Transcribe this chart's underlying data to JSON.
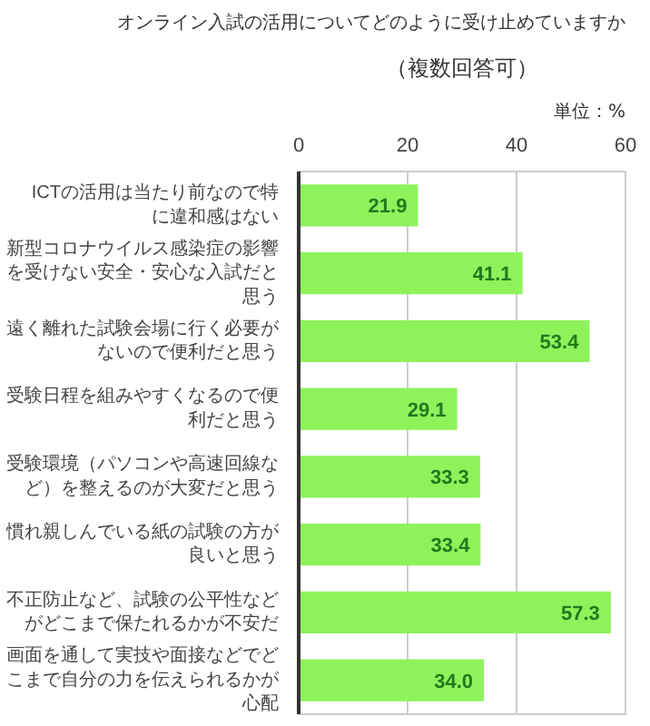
{
  "chart_data": {
    "type": "bar",
    "orientation": "horizontal",
    "title": "オンライン入試の活用についてどのように受け止めていますか",
    "subtitle": "（複数回答可）",
    "annotations": [
      "単位：%"
    ],
    "categories": [
      "ICTの活用は当たり前なので特に違和感はない",
      "新型コロナウイルス感染症の影響を受けない安全・安心な入試だと思う",
      "遠く離れた試験会場に行く必要がないので便利だと思う",
      "受験日程を組みやすくなるので便利だと思う",
      "受験環境（パソコンや高速回線など）を整えるのが大変だと思う",
      "慣れ親しんでいる紙の試験の方が良いと思う",
      "不正防止など、試験の公平性などがどこまで保たれるかが不安だ",
      "画面を通して実技や面接などでどこまで自分の力を伝えられるかが心配"
    ],
    "values": [
      21.9,
      41.1,
      53.4,
      29.1,
      33.3,
      33.4,
      57.3,
      34.0
    ],
    "value_labels": [
      "21.9",
      "41.1",
      "53.4",
      "29.1",
      "33.3",
      "33.4",
      "57.3",
      "34.0"
    ],
    "color": "#8ef25a",
    "xlim": [
      0,
      60
    ],
    "xticks": [
      0,
      20,
      40,
      60
    ],
    "grid": "x"
  }
}
